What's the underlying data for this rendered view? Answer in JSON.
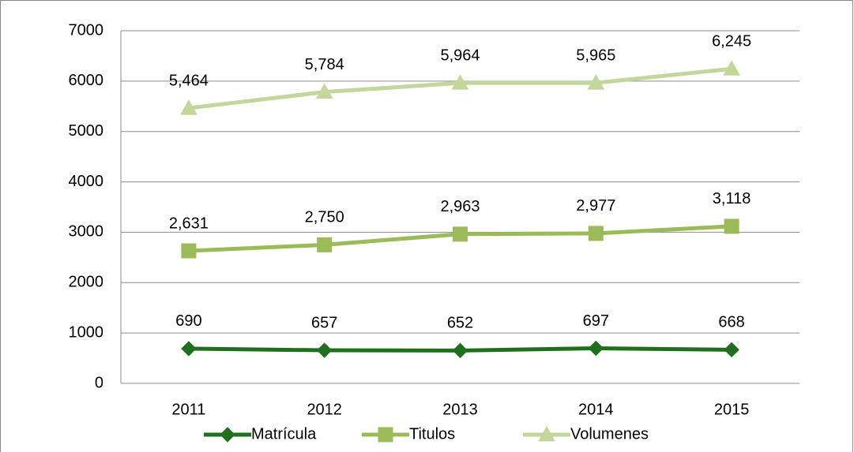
{
  "chart_data": {
    "type": "line",
    "categories": [
      "2011",
      "2012",
      "2013",
      "2014",
      "2015"
    ],
    "series": [
      {
        "name": "Matrícula",
        "color": "#1f6f1f",
        "marker": "diamond",
        "values": [
          690,
          657,
          652,
          697,
          668
        ]
      },
      {
        "name": "Titulos",
        "color": "#9bbb59",
        "marker": "square",
        "values": [
          2631,
          2750,
          2963,
          2977,
          3118
        ],
        "value_labels": [
          "2,631",
          "2,750",
          "2,963",
          "2,977",
          "3,118"
        ]
      },
      {
        "name": "Volumenes",
        "color": "#c3d69b",
        "marker": "triangle",
        "values": [
          5464,
          5784,
          5964,
          5965,
          6245
        ],
        "value_labels": [
          "5,464",
          "5,784",
          "5,964",
          "5,965",
          "6,245"
        ]
      }
    ],
    "ylim": [
      0,
      7000
    ],
    "yticks": [
      0,
      1000,
      2000,
      3000,
      4000,
      5000,
      6000,
      7000
    ],
    "grid": true,
    "legend": "bottom"
  }
}
